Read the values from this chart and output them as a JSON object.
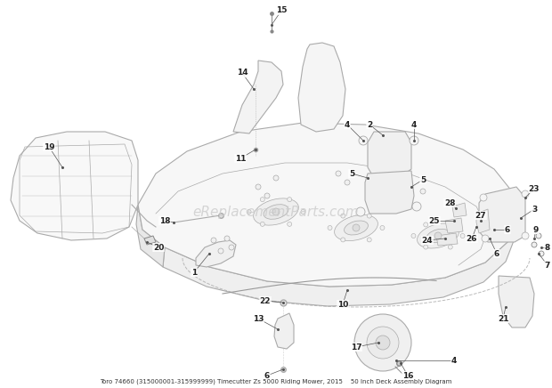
{
  "title": "Toro 74660 (315000001-315999999) Timecutter Zs 5000 Riding Mower, 2015\n50 Inch Deck Assembly Diagram",
  "watermark": "eReplacementParts.com",
  "bg_color": "#ffffff",
  "fig_width": 6.2,
  "fig_height": 4.36,
  "dpi": 100,
  "line_color": "#aaaaaa",
  "dark_line": "#888888",
  "label_color": "#222222"
}
